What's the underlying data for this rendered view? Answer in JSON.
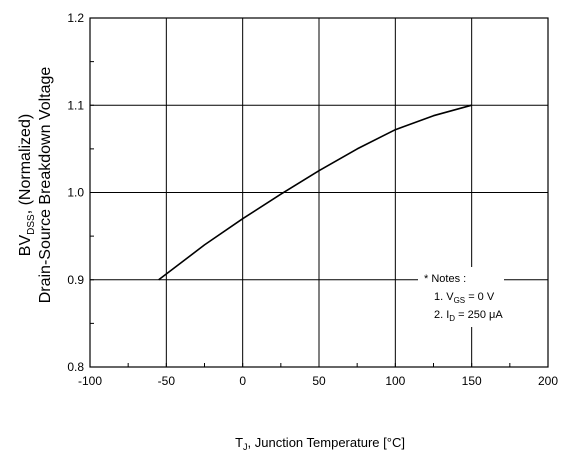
{
  "chart_data": {
    "type": "line",
    "xlabel": {
      "prefix": "T",
      "sub": "J",
      "rest": ", Junction Temperature [°C]"
    },
    "ylabel": {
      "line1_prefix": "BV",
      "line1_sub": "DSS",
      "line1_rest": ", (Normalized)",
      "line2": "Drain-Source Breakdown Voltage"
    },
    "xlim": [
      -100,
      200
    ],
    "ylim": [
      0.8,
      1.2
    ],
    "x_ticks": [
      -100,
      -50,
      0,
      50,
      100,
      150,
      200
    ],
    "y_ticks": [
      0.8,
      0.9,
      1.0,
      1.1,
      1.2
    ],
    "x_tick_labels": [
      "-100",
      "-50",
      "0",
      "50",
      "100",
      "150",
      "200"
    ],
    "y_tick_labels": [
      "0.8",
      "0.9",
      "1.0",
      "1.1",
      "1.2"
    ],
    "grid": true,
    "series": [
      {
        "x": [
          -55,
          -25,
          0,
          25,
          50,
          75,
          100,
          125,
          150
        ],
        "y": [
          0.9,
          0.94,
          0.97,
          0.998,
          1.025,
          1.05,
          1.072,
          1.088,
          1.1
        ]
      }
    ],
    "notes": {
      "title": "* Notes :",
      "line1": {
        "prefix": "1. V",
        "sub": "GS",
        "rest": " = 0 V"
      },
      "line2": {
        "prefix": "2. I",
        "sub": "D",
        "rest": " = 250 μA"
      }
    },
    "colors": {
      "line": "#000000",
      "grid": "#000000",
      "background": "#ffffff"
    }
  }
}
